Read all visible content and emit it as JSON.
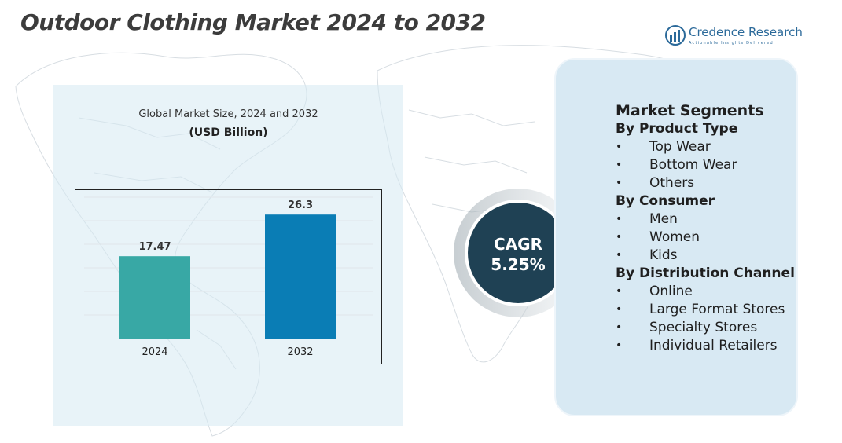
{
  "header": {
    "title": "Outdoor Clothing Market 2024 to 2032"
  },
  "logo": {
    "name": "Credence Research",
    "tagline": "Actionable Insights Delivered"
  },
  "chart_data": {
    "type": "bar",
    "title": "Global Market Size, 2024 and 2032",
    "subtitle": "(USD Billion)",
    "categories": [
      "2024",
      "2032"
    ],
    "values": [
      17.47,
      26.3
    ],
    "value_labels": [
      "17.47",
      "26.3"
    ],
    "colors": [
      "#38a8a5",
      "#0a7db5"
    ],
    "ylim": [
      0,
      30
    ],
    "grid": true,
    "xlabel": "",
    "ylabel": ""
  },
  "cagr": {
    "label": "CAGR",
    "value": "5.25%"
  },
  "segments": {
    "title": "Market Segments",
    "groups": [
      {
        "heading": "By Product Type",
        "items": [
          "Top Wear",
          "Bottom Wear",
          "Others"
        ]
      },
      {
        "heading": "By Consumer",
        "items": [
          "Men",
          "Women",
          "Kids"
        ]
      },
      {
        "heading": "By Distribution Channel",
        "items": [
          "Online",
          "Large Format Stores",
          "Specialty Stores",
          "Individual Retailers"
        ]
      }
    ],
    "bullet": "•"
  }
}
